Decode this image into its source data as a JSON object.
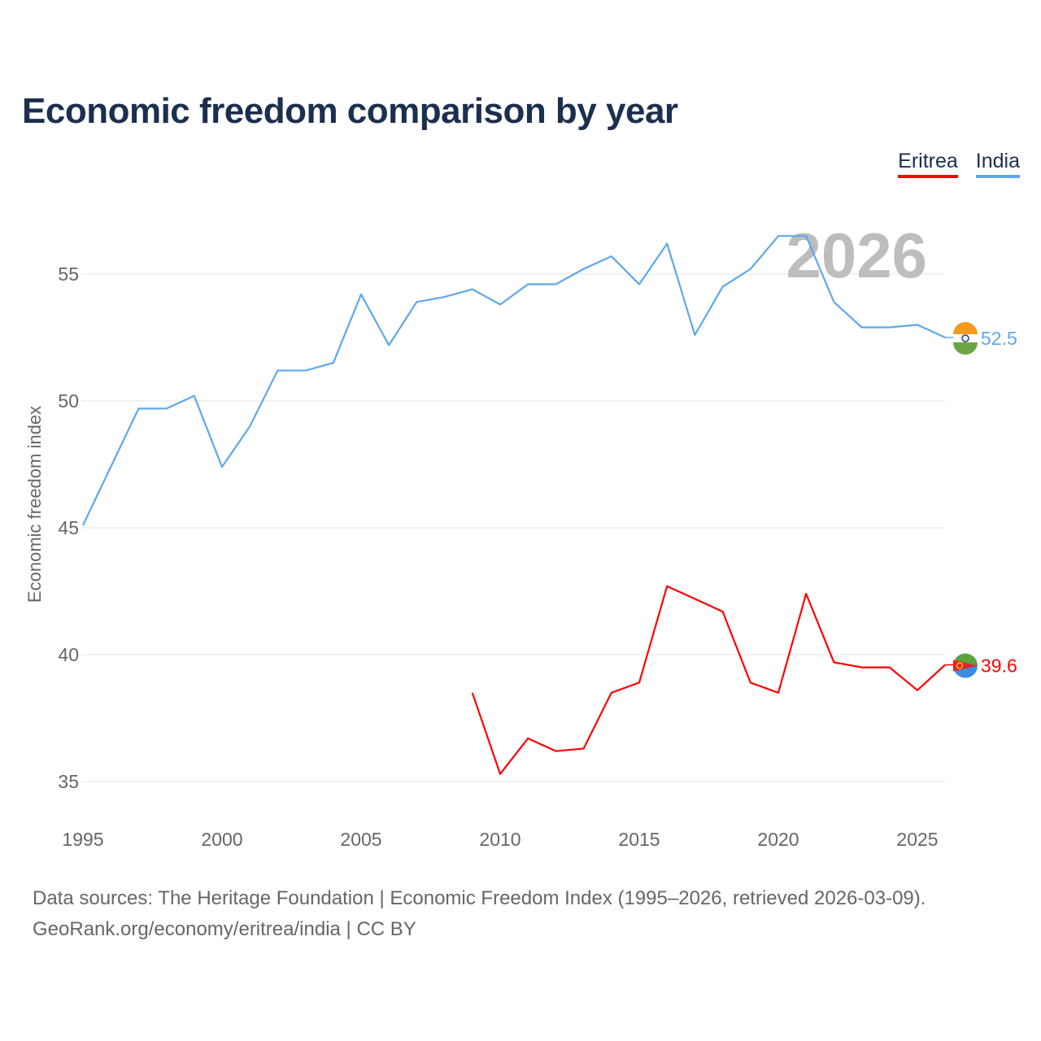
{
  "chart_data": {
    "type": "line",
    "title": "Economic freedom comparison by year",
    "ylabel": "Economic freedom index",
    "xlabel": "",
    "xlim": [
      1995,
      2026
    ],
    "ylim": [
      35,
      57
    ],
    "x_ticks": [
      1995,
      2000,
      2005,
      2010,
      2015,
      2020,
      2025
    ],
    "y_ticks": [
      35,
      40,
      45,
      50,
      55
    ],
    "grid": true,
    "legend_position": "top-right",
    "watermark_year": "2026",
    "series": [
      {
        "name": "Eritrea",
        "color": "#ff0000",
        "end_label": "39.6",
        "x": [
          2009,
          2010,
          2011,
          2012,
          2013,
          2014,
          2015,
          2016,
          2017,
          2018,
          2019,
          2020,
          2021,
          2022,
          2023,
          2024,
          2025,
          2026
        ],
        "values": [
          38.5,
          35.3,
          36.7,
          36.2,
          36.3,
          38.5,
          38.9,
          42.7,
          42.2,
          41.7,
          38.9,
          38.5,
          42.4,
          39.7,
          39.5,
          39.5,
          38.6,
          39.6
        ]
      },
      {
        "name": "India",
        "color": "#5ea8ea",
        "end_label": "52.5",
        "x": [
          1995,
          1996,
          1997,
          1998,
          1999,
          2000,
          2001,
          2002,
          2003,
          2004,
          2005,
          2006,
          2007,
          2008,
          2009,
          2010,
          2011,
          2012,
          2013,
          2014,
          2015,
          2016,
          2017,
          2018,
          2019,
          2020,
          2021,
          2022,
          2023,
          2024,
          2025,
          2026
        ],
        "values": [
          45.1,
          47.4,
          49.7,
          49.7,
          50.2,
          47.4,
          49.0,
          51.2,
          51.2,
          51.5,
          54.2,
          52.2,
          53.9,
          54.1,
          54.4,
          53.8,
          54.6,
          54.6,
          55.2,
          55.7,
          54.6,
          56.2,
          52.6,
          54.5,
          55.2,
          56.5,
          56.5,
          53.9,
          52.9,
          52.9,
          53.0,
          52.5
        ]
      }
    ]
  },
  "footer": {
    "line1": "Data sources: The Heritage Foundation | Economic Freedom Index (1995–2026, retrieved 2026-03-09).",
    "line2": "GeoRank.org/economy/eritrea/india | CC BY"
  }
}
